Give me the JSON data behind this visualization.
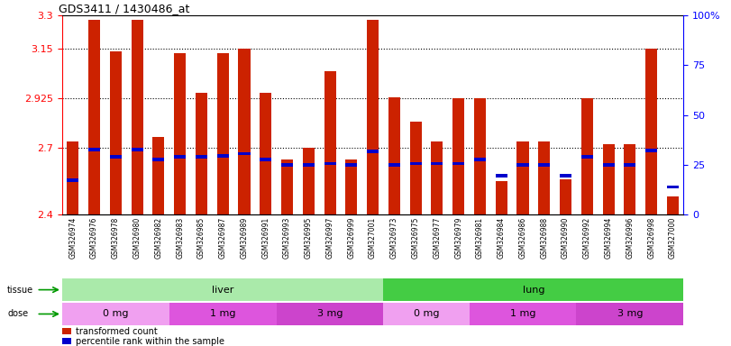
{
  "title": "GDS3411 / 1430486_at",
  "samples": [
    "GSM326974",
    "GSM326976",
    "GSM326978",
    "GSM326980",
    "GSM326982",
    "GSM326983",
    "GSM326985",
    "GSM326987",
    "GSM326989",
    "GSM326991",
    "GSM326993",
    "GSM326995",
    "GSM326997",
    "GSM326999",
    "GSM327001",
    "GSM326973",
    "GSM326975",
    "GSM326977",
    "GSM326979",
    "GSM326981",
    "GSM326984",
    "GSM326986",
    "GSM326988",
    "GSM326990",
    "GSM326992",
    "GSM326994",
    "GSM326996",
    "GSM326998",
    "GSM327000"
  ],
  "red_values": [
    2.73,
    3.28,
    3.14,
    3.28,
    2.75,
    3.13,
    2.95,
    3.13,
    3.15,
    2.95,
    2.65,
    2.7,
    3.05,
    2.65,
    3.28,
    2.93,
    2.82,
    2.73,
    2.925,
    2.925,
    2.55,
    2.73,
    2.73,
    2.56,
    2.925,
    2.72,
    2.72,
    3.15,
    2.48
  ],
  "blue_values": [
    2.555,
    2.695,
    2.66,
    2.695,
    2.65,
    2.66,
    2.66,
    2.665,
    2.675,
    2.65,
    2.625,
    2.625,
    2.63,
    2.625,
    2.685,
    2.625,
    2.63,
    2.63,
    2.63,
    2.65,
    2.575,
    2.625,
    2.625,
    2.575,
    2.66,
    2.625,
    2.625,
    2.69,
    2.525
  ],
  "ymin": 2.4,
  "ymax": 3.3,
  "yticks": [
    2.4,
    2.7,
    2.925,
    3.15,
    3.3
  ],
  "ytick_labels": [
    "2.4",
    "2.7",
    "2.925",
    "3.15",
    "3.3"
  ],
  "grid_lines": [
    2.7,
    2.925,
    3.15
  ],
  "right_yticks_pct": [
    0,
    25,
    50,
    75,
    100
  ],
  "right_ytick_labels": [
    "0",
    "25",
    "50",
    "75",
    "100%"
  ],
  "tissue_groups": [
    {
      "label": "liver",
      "start": 0,
      "end": 15,
      "color": "#aaeaaa"
    },
    {
      "label": "lung",
      "start": 15,
      "end": 29,
      "color": "#44cc44"
    }
  ],
  "dose_groups": [
    {
      "label": "0 mg",
      "start": 0,
      "end": 5,
      "color": "#f0a0f0"
    },
    {
      "label": "1 mg",
      "start": 5,
      "end": 10,
      "color": "#dd55dd"
    },
    {
      "label": "3 mg",
      "start": 10,
      "end": 15,
      "color": "#cc44cc"
    },
    {
      "label": "0 mg",
      "start": 15,
      "end": 19,
      "color": "#f0a0f0"
    },
    {
      "label": "1 mg",
      "start": 19,
      "end": 24,
      "color": "#dd55dd"
    },
    {
      "label": "3 mg",
      "start": 24,
      "end": 29,
      "color": "#cc44cc"
    }
  ],
  "bar_color": "#cc2200",
  "blue_color": "#0000cc",
  "bar_width": 0.55,
  "bg_color": "#ffffff",
  "legend_items": [
    {
      "color": "#cc2200",
      "label": "transformed count"
    },
    {
      "color": "#0000cc",
      "label": "percentile rank within the sample"
    }
  ],
  "tissue_label_color": "#000000",
  "dose_label_color": "#000000",
  "arrow_color": "#009900",
  "xtick_bg": "#d8d8d8"
}
